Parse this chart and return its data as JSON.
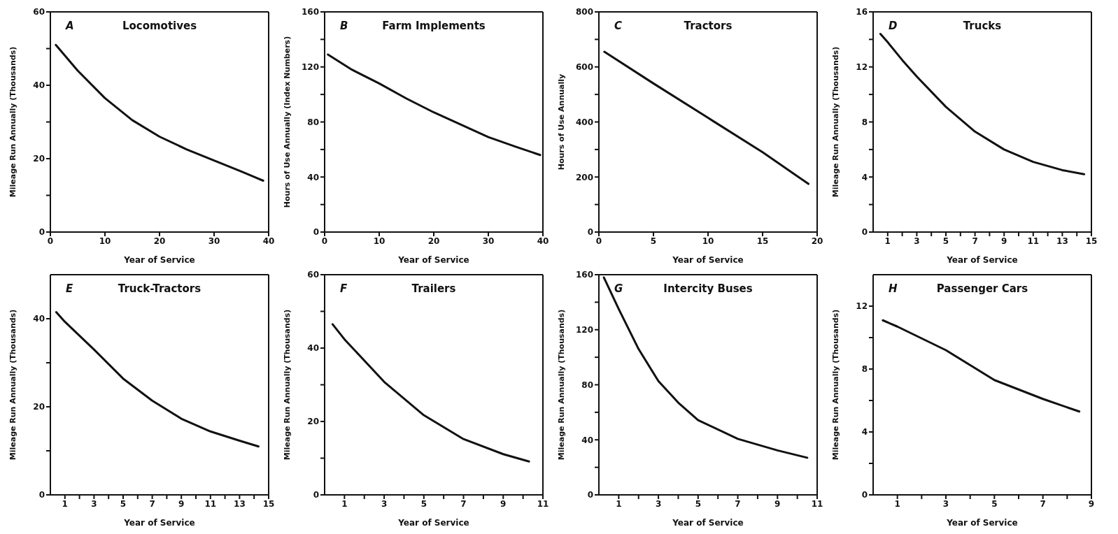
{
  "chart_data": [
    {
      "type": "line",
      "title": "Locomotives",
      "annotations": [
        "A"
      ],
      "xlabel": "Year of Service",
      "ylabel": "Mileage Run Annually (Thousands)",
      "color": "#111111",
      "marker": "none",
      "x": [
        1,
        5,
        10,
        15,
        20,
        25,
        30,
        35,
        39
      ],
      "values": [
        51,
        44,
        36.5,
        30.5,
        26,
        22.5,
        19.5,
        16.5,
        14
      ],
      "xlim": [
        0,
        40
      ],
      "xticks": [
        0,
        10,
        20,
        30,
        40
      ],
      "ylim": [
        0,
        60
      ],
      "yticks": [
        0,
        {
          "value": 10,
          "label": null
        },
        20,
        {
          "value": 30,
          "label": null
        },
        40,
        {
          "value": 50,
          "label": null
        },
        60
      ]
    },
    {
      "type": "line",
      "title": "Farm Implements",
      "annotations": [
        "B"
      ],
      "xlabel": "Year of Service",
      "ylabel": "Hours of Use Annually (Index Numbers)",
      "color": "#111111",
      "marker": "none",
      "x": [
        0.6,
        5,
        10,
        15,
        20,
        25,
        30,
        35,
        39.5
      ],
      "values": [
        129,
        118,
        108,
        97,
        87,
        78,
        69,
        62,
        56
      ],
      "xlim": [
        0,
        40
      ],
      "xticks": [
        0,
        10,
        20,
        30,
        40
      ],
      "ylim": [
        0,
        160
      ],
      "yticks": [
        0,
        {
          "value": 20,
          "label": null
        },
        40,
        {
          "value": 60,
          "label": null
        },
        80,
        {
          "value": 100,
          "label": null
        },
        120,
        {
          "value": 140,
          "label": null
        },
        160
      ]
    },
    {
      "type": "line",
      "title": "Tractors",
      "annotations": [
        "C"
      ],
      "xlabel": "Year of Service",
      "ylabel": "Hours of Use Annually",
      "color": "#111111",
      "marker": "none",
      "x": [
        0.5,
        5,
        10,
        15,
        19.2
      ],
      "values": [
        655,
        540,
        415,
        290,
        175
      ],
      "xlim": [
        0,
        20
      ],
      "xticks": [
        0,
        5,
        10,
        15,
        20
      ],
      "ylim": [
        0,
        800
      ],
      "yticks": [
        0,
        {
          "value": 100,
          "label": null
        },
        200,
        {
          "value": 300,
          "label": null
        },
        400,
        {
          "value": 500,
          "label": null
        },
        600,
        {
          "value": 700,
          "label": null
        },
        800
      ]
    },
    {
      "type": "line",
      "title": "Trucks",
      "annotations": [
        "D"
      ],
      "xlabel": "Year of Service",
      "ylabel": "Mileage Run Annually (Thousands)",
      "color": "#111111",
      "marker": "none",
      "x": [
        0.5,
        1,
        2,
        3,
        5,
        7,
        9,
        11,
        13,
        14.5
      ],
      "values": [
        14.4,
        13.8,
        12.5,
        11.3,
        9.1,
        7.3,
        6,
        5.1,
        4.5,
        4.2
      ],
      "xlim": [
        0,
        15
      ],
      "xticks": [
        1,
        {
          "value": 2,
          "label": null
        },
        3,
        {
          "value": 4,
          "label": null
        },
        5,
        {
          "value": 6,
          "label": null
        },
        7,
        {
          "value": 8,
          "label": null
        },
        9,
        {
          "value": 10,
          "label": null
        },
        11,
        {
          "value": 12,
          "label": null
        },
        13,
        {
          "value": 14,
          "label": null
        },
        15
      ],
      "ylim": [
        0,
        16
      ],
      "yticks": [
        0,
        {
          "value": 2,
          "label": null
        },
        4,
        {
          "value": 6,
          "label": null
        },
        8,
        {
          "value": 10,
          "label": null
        },
        12,
        {
          "value": 14,
          "label": null
        },
        16
      ]
    },
    {
      "type": "line",
      "title": "Truck-Tractors",
      "annotations": [
        "E"
      ],
      "xlabel": "Year of Service",
      "ylabel": "Mileage Run Annually (Thousands)",
      "color": "#111111",
      "marker": "none",
      "x": [
        0.4,
        1,
        3,
        5,
        7,
        9,
        11,
        13,
        14.3
      ],
      "values": [
        41.5,
        39.3,
        33,
        26.4,
        21.4,
        17.3,
        14.4,
        12.3,
        11
      ],
      "xlim": [
        0,
        15
      ],
      "xticks": [
        1,
        {
          "value": 2,
          "label": null
        },
        3,
        {
          "value": 4,
          "label": null
        },
        5,
        {
          "value": 6,
          "label": null
        },
        7,
        {
          "value": 8,
          "label": null
        },
        9,
        {
          "value": 10,
          "label": null
        },
        11,
        {
          "value": 12,
          "label": null
        },
        13,
        {
          "value": 14,
          "label": null
        },
        15
      ],
      "ylim": [
        0,
        50
      ],
      "yticks": [
        0,
        {
          "value": 10,
          "label": null
        },
        20,
        {
          "value": 30,
          "label": null
        },
        40
      ]
    },
    {
      "type": "line",
      "title": "Trailers",
      "annotations": [
        "F"
      ],
      "xlabel": "Year of Service",
      "ylabel": "Mileage Run Annually (Thousands)",
      "color": "#111111",
      "marker": "none",
      "x": [
        0.4,
        1,
        3,
        5,
        7,
        9,
        10.3
      ],
      "values": [
        46.5,
        42.4,
        30.8,
        21.7,
        15.2,
        11.1,
        9.1
      ],
      "xlim": [
        0,
        11
      ],
      "xticks": [
        1,
        {
          "value": 2,
          "label": null
        },
        3,
        {
          "value": 4,
          "label": null
        },
        5,
        {
          "value": 6,
          "label": null
        },
        7,
        {
          "value": 8,
          "label": null
        },
        9,
        {
          "value": 10,
          "label": null
        },
        11
      ],
      "ylim": [
        0,
        60
      ],
      "yticks": [
        0,
        {
          "value": 10,
          "label": null
        },
        20,
        {
          "value": 30,
          "label": null
        },
        40,
        {
          "value": 50,
          "label": null
        },
        60
      ]
    },
    {
      "type": "line",
      "title": "Intercity Buses",
      "annotations": [
        "G"
      ],
      "xlabel": "Year of Service",
      "ylabel": "Mileage Run Annually (Thousands)",
      "color": "#111111",
      "marker": "none",
      "x": [
        0.25,
        1,
        2,
        3,
        4,
        5,
        7,
        9,
        10.5
      ],
      "values": [
        158,
        135,
        106,
        82.7,
        67,
        54.3,
        40.7,
        32.3,
        27
      ],
      "xlim": [
        0,
        11
      ],
      "xticks": [
        1,
        {
          "value": 2,
          "label": null
        },
        3,
        {
          "value": 4,
          "label": null
        },
        5,
        {
          "value": 6,
          "label": null
        },
        7,
        {
          "value": 8,
          "label": null
        },
        9,
        {
          "value": 10,
          "label": null
        },
        11
      ],
      "ylim": [
        0,
        160
      ],
      "yticks": [
        0,
        {
          "value": 20,
          "label": null
        },
        40,
        {
          "value": 60,
          "label": null
        },
        80,
        {
          "value": 100,
          "label": null
        },
        120,
        {
          "value": 140,
          "label": null
        },
        160
      ]
    },
    {
      "type": "line",
      "title": "Passenger Cars",
      "annotations": [
        "H"
      ],
      "xlabel": "Year of Service",
      "ylabel": "Mileage Run Annually (Thousands)",
      "color": "#111111",
      "marker": "none",
      "x": [
        0.4,
        1,
        3,
        5,
        7,
        8.5
      ],
      "values": [
        11.1,
        10.7,
        9.2,
        7.3,
        6.1,
        5.3
      ],
      "xlim": [
        0,
        9
      ],
      "xticks": [
        1,
        {
          "value": 2,
          "label": null
        },
        3,
        {
          "value": 4,
          "label": null
        },
        5,
        {
          "value": 6,
          "label": null
        },
        7,
        {
          "value": 8,
          "label": null
        },
        9
      ],
      "ylim": [
        0,
        14
      ],
      "yticks": [
        0,
        {
          "value": 2,
          "label": null
        },
        4,
        {
          "value": 6,
          "label": null
        },
        8,
        {
          "value": 10,
          "label": null
        },
        12
      ]
    }
  ]
}
